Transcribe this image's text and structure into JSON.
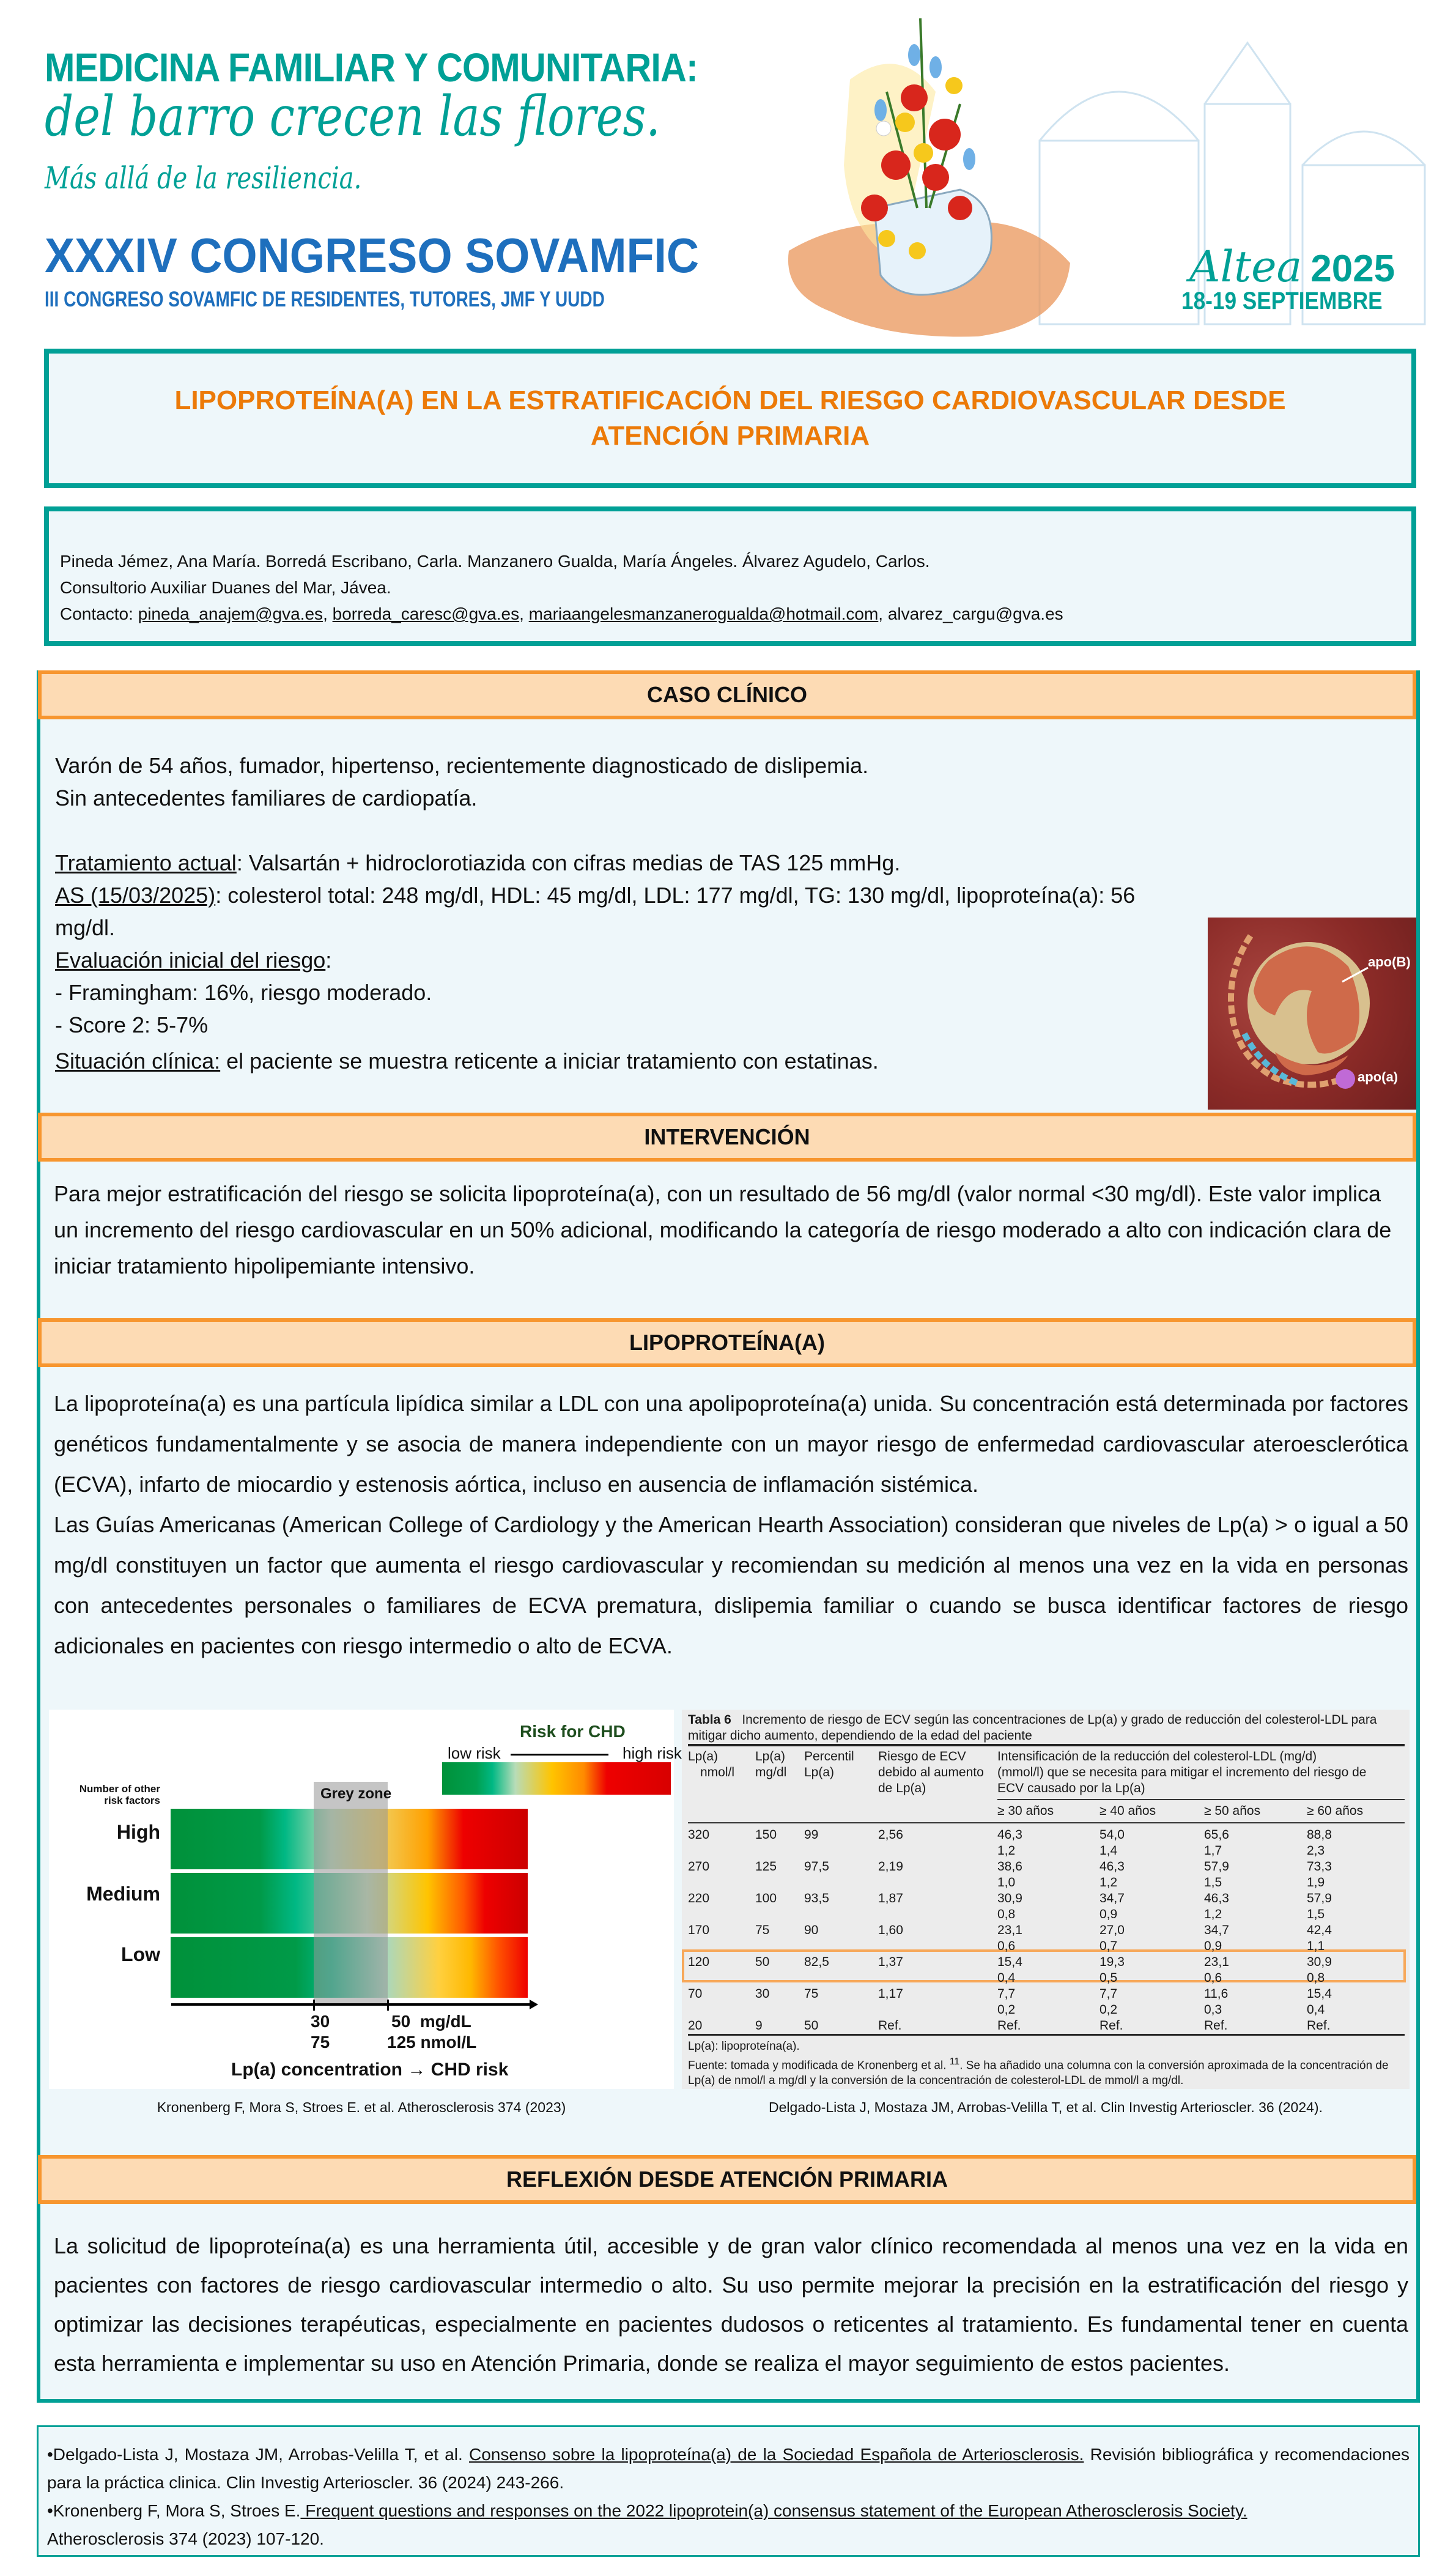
{
  "header": {
    "line1": "MEDICINA FAMILIAR Y COMUNITARIA:",
    "line2": "del barro crecen las flores.",
    "line3": "Más allá de la resiliencia.",
    "congress": "XXXIV CONGRESO SOVAMFIC",
    "congress_sub": "III CONGRESO SOVAMFIC DE RESIDENTES, TUTORES, JMF Y UUDD",
    "city": "Altea",
    "year": "2025",
    "dates": "18-19 SEPTIEMBRE"
  },
  "title": {
    "line1": "LIPOPROTEÍNA(A) EN LA ESTRATIFICACIÓN DEL RIESGO CARDIOVASCULAR DESDE",
    "line2": "ATENCIÓN PRIMARIA"
  },
  "authors": {
    "names": "Pineda Jémez, Ana María. Borredá Escribano, Carla. Manzanero Gualda, María Ángeles. Álvarez Agudelo, Carlos.",
    "center": "Consultorio Auxiliar Duanes del Mar, Jávea.",
    "contact_label": "Contacto: ",
    "emails": [
      "pineda_anajem@gva.es",
      "borreda_caresc@gva.es",
      "mariaangelesmanzanerogualda@hotmail.com",
      "alvarez_cargu@gva.es"
    ]
  },
  "caso": {
    "heading": "CASO CLÍNICO",
    "l1": "Varón de 54 años, fumador, hipertenso, recientemente diagnosticado de dislipemia.",
    "l2": "Sin antecedentes familiares de cardiopatía.",
    "tratamiento_label": "Tratamiento actual",
    "tratamiento_text": ": Valsartán + hidroclorotiazida con cifras medias de TAS 125 mmHg.",
    "as_label": "AS (15/03/2025)",
    "as_text": ": colesterol total: 248 mg/dl, HDL: 45 mg/dl, LDL: 177 mg/dl, TG: 130 mg/dl, lipoproteína(a): 56 mg/dl.",
    "eval_label": "Evaluación inicial del riesgo",
    "eval_text": ":",
    "framingham": "- Framingham: 16%, riesgo moderado.",
    "score": "- Score 2: 5-7%",
    "situacion_label": "Situación clínica:",
    "situacion_text": " el paciente se muestra reticente a iniciar tratamiento con estatinas.",
    "image_labels": {
      "apob": "apo(B)",
      "apoa": "apo(a)"
    }
  },
  "intervencion": {
    "heading": "INTERVENCIÓN",
    "text": "Para mejor estratificación del riesgo se solicita lipoproteína(a), con un resultado de 56 mg/dl (valor normal <30 mg/dl). Este valor implica un incremento del riesgo cardiovascular en un 50% adicional, modificando la categoría de riesgo moderado a alto con indicación clara de iniciar tratamiento hipolipemiante intensivo."
  },
  "lipo": {
    "heading": "LIPOPROTEÍNA(A)",
    "p1": "La lipoproteína(a) es una partícula lipídica similar a LDL con una apolipoproteína(a) unida. Su concentración está determinada por factores genéticos fundamentalmente y se asocia de manera independiente con un mayor riesgo de enfermedad cardiovascular ateroesclerótica (ECVA), infarto de miocardio y estenosis aórtica, incluso en ausencia de inflamación sistémica.",
    "p2": "Las Guías Americanas (American College of Cardiology y the American Hearth Association) consideran que niveles de Lp(a) > o igual a 50 mg/dl constituyen un factor que aumenta el riesgo cardiovascular y recomiendan su medición al menos una vez en la vida en personas con antecedentes personales o familiares de ECVA prematura, dislipemia familiar o cuando se busca identificar factores de riesgo adicionales en pacientes con riesgo intermedio o alto de ECVA."
  },
  "figure": {
    "legend_title": "Risk for CHD",
    "low_risk": "low risk",
    "high_risk": "high risk",
    "rows_title": "Number of other risk factors",
    "rows": [
      "High",
      "Medium",
      "Low"
    ],
    "grey_zone": "Grey zone",
    "tick1_mg": "30",
    "tick1_nmol": "75",
    "tick2_mg": "50  mg/dL",
    "tick2_nmol": "125 nmol/L",
    "axis_title": "Lp(a) concentration → CHD risk",
    "caption": "Kronenberg F, Mora S, Stroes E. et al. Atherosclerosis 374 (2023)",
    "colors": {
      "green": "#00913a",
      "teal": "#00b884",
      "yellow": "#ffc400",
      "orange": "#ff7a00",
      "red": "#ee0000",
      "grey": "#bdbdbd"
    }
  },
  "table": {
    "title_label": "Tabla 6",
    "title": "Incremento de riesgo de ECV según las concentraciones de Lp(a) y grado de reducción del colesterol-LDL para mitigar dicho aumento, dependiendo de la edad del paciente",
    "headers": {
      "c1a": "Lp(a)",
      "c1b": "nmol/l",
      "c2a": "Lp(a)",
      "c2b": "mg/dl",
      "c3a": "Percentil",
      "c3b": "Lp(a)",
      "c4a": "Riesgo de ECV",
      "c4b": "debido al aumento",
      "c4c": "de Lp(a)",
      "c5a": "Intensificación de la reducción del colesterol-LDL (mg/d)",
      "c5b": "(mmol/l) que se necesita para mitigar el incremento del riesgo de",
      "c5c": "ECV causado por la Lp(a)"
    },
    "ages": [
      "≥ 30 años",
      "≥ 40 años",
      "≥ 50 años",
      "≥ 60 años"
    ],
    "rows": [
      {
        "nmol": "320",
        "mgdl": "150",
        "pct": "99",
        "risk": "2,56",
        "ldl_mg": [
          "46,3",
          "54,0",
          "65,6",
          "88,8"
        ],
        "ldl_mmol": [
          "1,2",
          "1,4",
          "1,7",
          "2,3"
        ]
      },
      {
        "nmol": "270",
        "mgdl": "125",
        "pct": "97,5",
        "risk": "2,19",
        "ldl_mg": [
          "38,6",
          "46,3",
          "57,9",
          "73,3"
        ],
        "ldl_mmol": [
          "1,0",
          "1,2",
          "1,5",
          "1,9"
        ]
      },
      {
        "nmol": "220",
        "mgdl": "100",
        "pct": "93,5",
        "risk": "1,87",
        "ldl_mg": [
          "30,9",
          "34,7",
          "46,3",
          "57,9"
        ],
        "ldl_mmol": [
          "0,8",
          "0,9",
          "1,2",
          "1,5"
        ]
      },
      {
        "nmol": "170",
        "mgdl": "75",
        "pct": "90",
        "risk": "1,60",
        "ldl_mg": [
          "23,1",
          "27,0",
          "34,7",
          "42,4"
        ],
        "ldl_mmol": [
          "0,6",
          "0,7",
          "0,9",
          "1,1"
        ]
      },
      {
        "nmol": "120",
        "mgdl": "50",
        "pct": "82,5",
        "risk": "1,37",
        "ldl_mg": [
          "15,4",
          "19,3",
          "23,1",
          "30,9"
        ],
        "ldl_mmol": [
          "0,4",
          "0,5",
          "0,6",
          "0,8"
        ],
        "highlighted": true
      },
      {
        "nmol": "70",
        "mgdl": "30",
        "pct": "75",
        "risk": "1,17",
        "ldl_mg": [
          "7,7",
          "7,7",
          "11,6",
          "15,4"
        ],
        "ldl_mmol": [
          "0,2",
          "0,2",
          "0,3",
          "0,4"
        ]
      },
      {
        "nmol": "20",
        "mgdl": "9",
        "pct": "50",
        "risk": "Ref.",
        "ldl_mg": [
          "Ref.",
          "Ref.",
          "Ref.",
          "Ref."
        ],
        "ldl_mmol": []
      }
    ],
    "footnote1": "Lp(a): lipoproteína(a).",
    "footnote2_a": "Fuente: tomada y modificada de Kronenberg et al. ",
    "footnote2_sup": "11",
    "footnote2_b": ". Se ha añadido una columna con la conversión aproximada de la concentración de Lp(a) de nmol/l a mg/dl y la conversión de la concentración de colesterol-LDL de mmol/l a mg/dl.",
    "highlight_color": "#f7a85a",
    "caption": "Delgado-Lista  J, Mostaza JM, Arrobas-Velilla T, et al.  Clin Investig Arterioscler. 36 (2024)."
  },
  "reflexion": {
    "heading": "REFLEXIÓN DESDE ATENCIÓN PRIMARIA",
    "text": "La solicitud de lipoproteína(a) es una herramienta útil, accesible y de gran valor clínico recomendada al menos una vez en la vida en pacientes con factores de riesgo cardiovascular intermedio o alto. Su uso permite mejorar la precisión en la estratificación del riesgo y optimizar las decisiones terapéuticas, especialmente en pacientes dudosos o reticentes al tratamiento. Es fundamental tener en cuenta esta herramienta e implementar su uso en Atención Primaria, donde se realiza el mayor seguimiento de estos pacientes."
  },
  "references": {
    "r1_authors": "•Delgado-Lista J, Mostaza JM, Arrobas-Velilla T, et al. ",
    "r1_title": "Consenso sobre la lipoproteína(a) de la Sociedad Española de Arteriosclerosis.",
    "r1_rest": " Revisión bibliográfica y recomendaciones para la práctica clinica. Clin Investig Arterioscler. 36 (2024) 243-266.",
    "r2_authors": "•Kronenberg F, Mora S, Stroes E.",
    "r2_title": " Frequent questions and responses on the 2022 lipoprotein(a) consensus statement of the European Atherosclerosis Society.",
    "r2_rest": " Atherosclerosis 374 (2023) 107-120."
  },
  "colors": {
    "teal": "#00a096",
    "orange_title": "#ec7a08",
    "section_border": "#f7962f",
    "section_fill": "#fddbb4",
    "blue": "#1e6fbd",
    "panel_bg": "#eef7fa"
  }
}
